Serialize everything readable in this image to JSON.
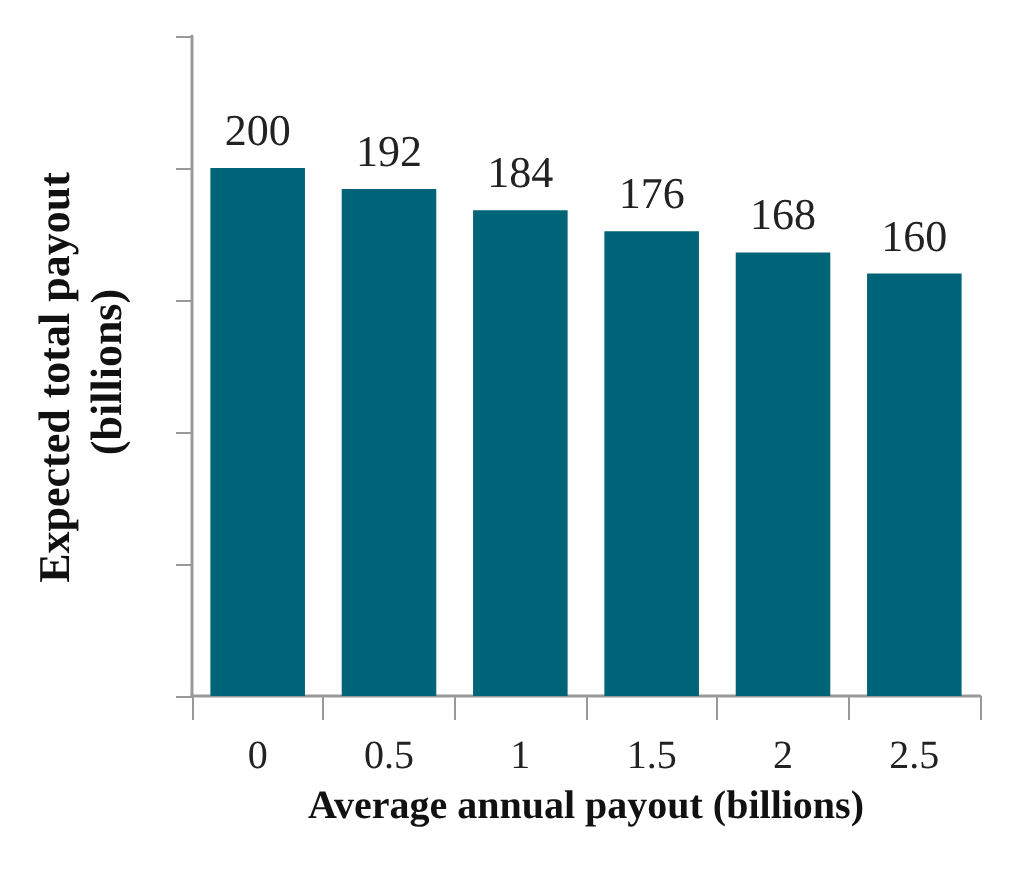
{
  "chart_data": {
    "type": "bar",
    "xlabel": "Average annual payout (billions)",
    "ylabel": "Expected total payout (billions)",
    "categories": [
      "0",
      "0.5",
      "1",
      "1.5",
      "2",
      "2.5"
    ],
    "values": [
      200,
      192,
      184,
      176,
      168,
      160
    ],
    "color": "#006478",
    "data_labels": true,
    "ylim": [
      0,
      250
    ],
    "yticks": [
      {
        "value": 0,
        "label": null
      },
      {
        "value": 50,
        "label": null
      },
      {
        "value": 100,
        "label": null
      },
      {
        "value": 150,
        "label": null
      },
      {
        "value": 200,
        "label": null
      },
      {
        "value": 250,
        "label": null
      }
    ],
    "tick_labels": "x",
    "grid": false
  }
}
